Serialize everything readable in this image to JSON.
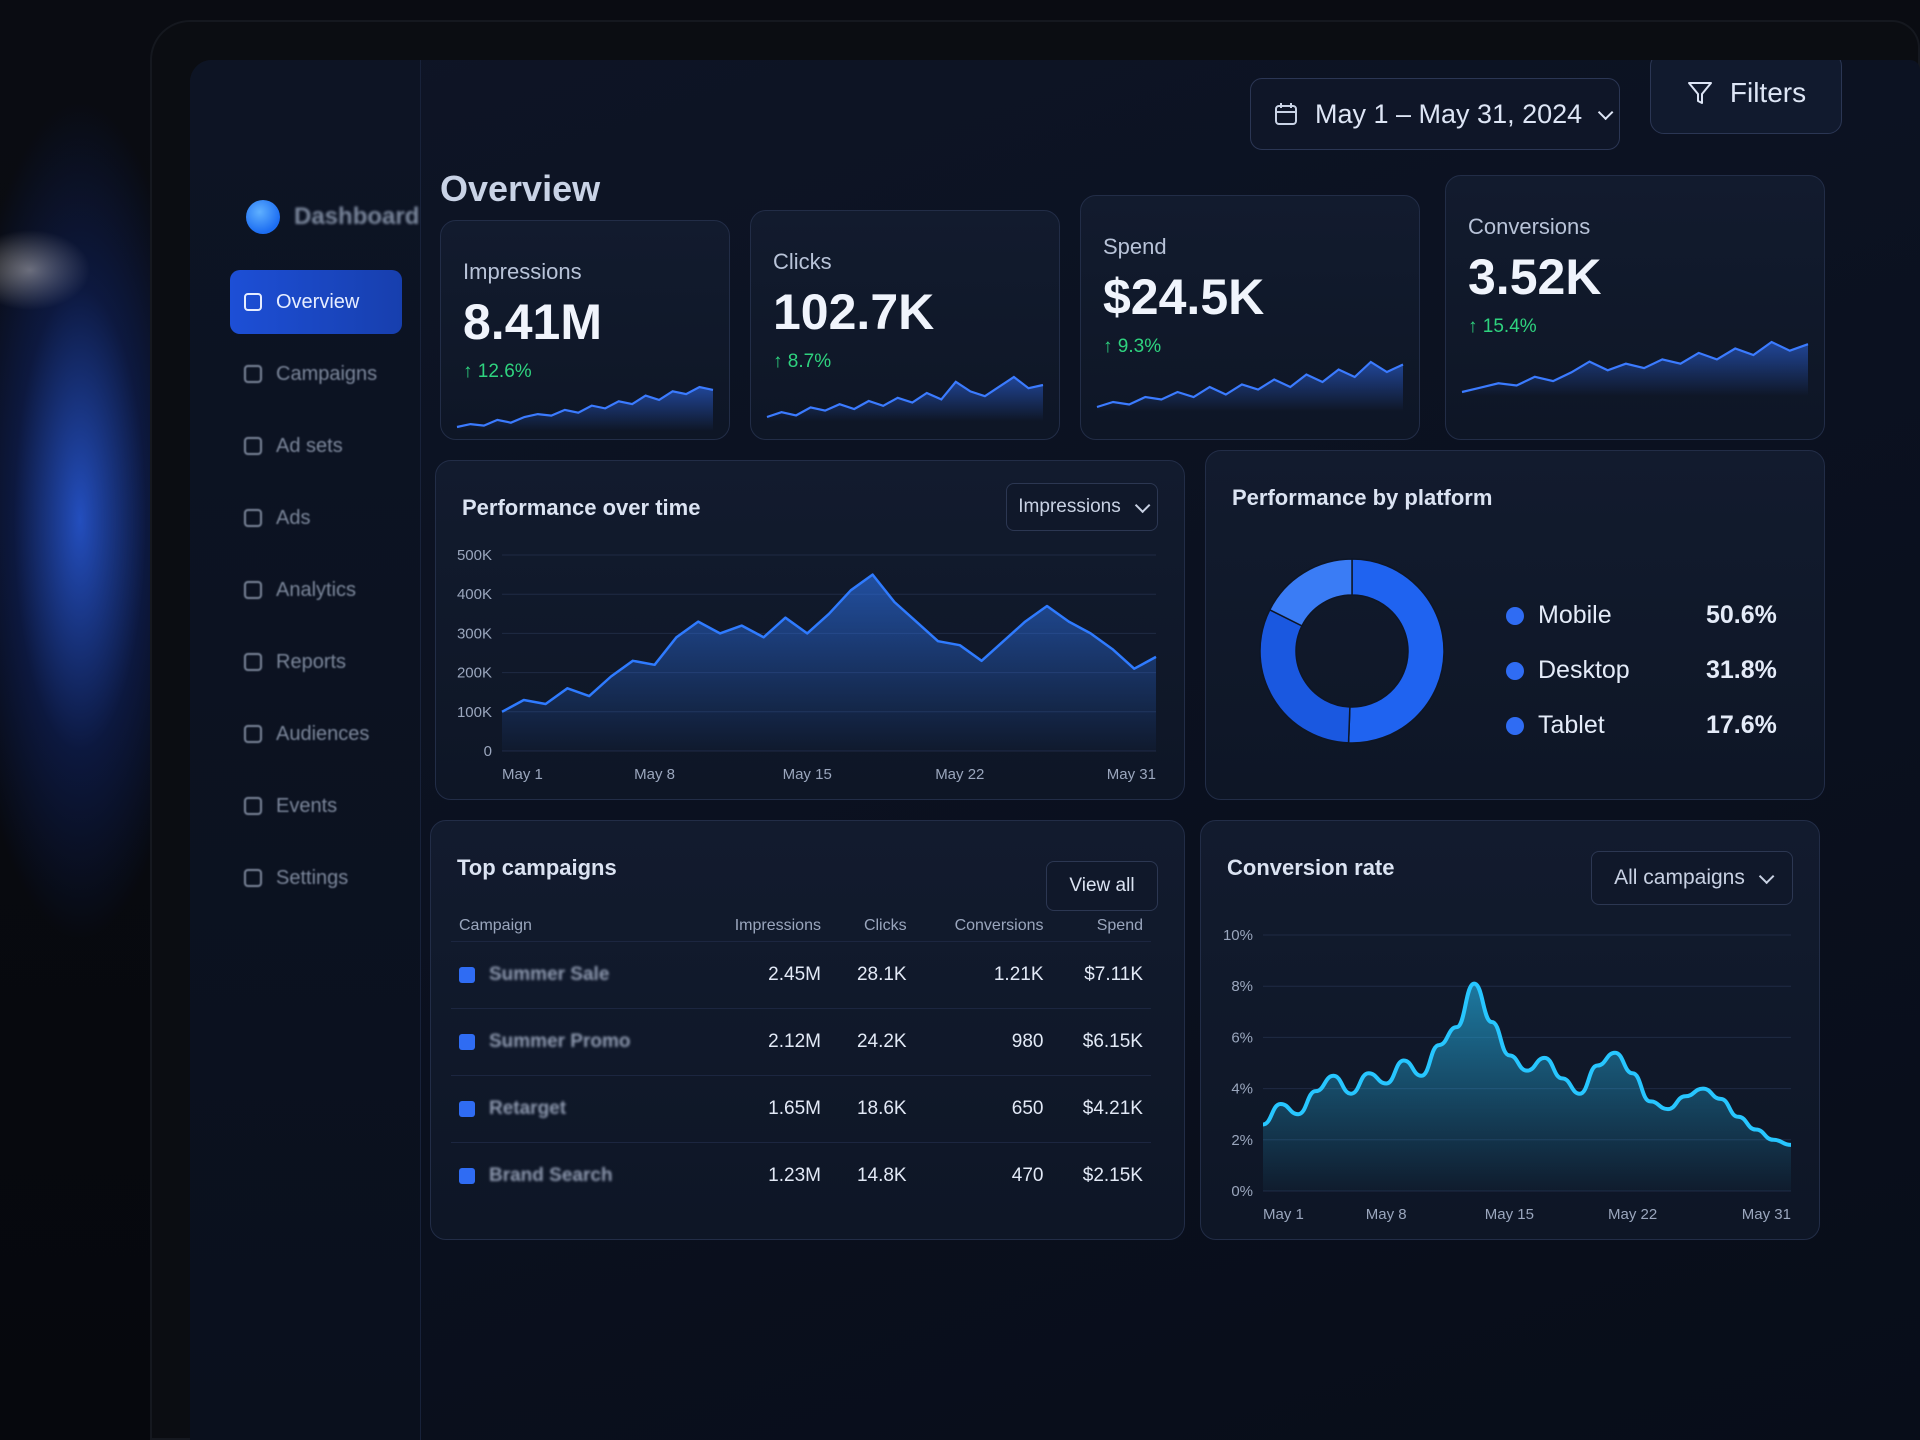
{
  "header": {
    "title": "Overview",
    "date_range": "May 1 – May 31, 2024",
    "filters_label": "Filters"
  },
  "sidebar": {
    "brand_name": "Dashboard",
    "items": [
      {
        "label": "Overview",
        "icon": "grid-icon",
        "active": true
      },
      {
        "label": "Campaigns",
        "icon": "megaphone-icon"
      },
      {
        "label": "Ad sets",
        "icon": "layers-icon"
      },
      {
        "label": "Ads",
        "icon": "ad-icon"
      },
      {
        "label": "Analytics",
        "icon": "bar-chart-icon"
      },
      {
        "label": "Reports",
        "icon": "document-icon"
      },
      {
        "label": "Audiences",
        "icon": "users-icon"
      },
      {
        "label": "Events",
        "icon": "calendar-icon"
      },
      {
        "label": "Settings",
        "icon": "gear-icon"
      }
    ]
  },
  "kpis": [
    {
      "label": "Impressions",
      "value": "8.41M",
      "delta": "↑ 12.6%",
      "spark": [
        22,
        24,
        23,
        27,
        25,
        29,
        31,
        30,
        34,
        32,
        37,
        35,
        40,
        38,
        44,
        41,
        47,
        45,
        50,
        48
      ]
    },
    {
      "label": "Clicks",
      "value": "102.7K",
      "delta": "↑ 8.7%",
      "spark": [
        20,
        23,
        21,
        26,
        24,
        28,
        25,
        30,
        27,
        32,
        29,
        35,
        31,
        42,
        36,
        33,
        39,
        45,
        38,
        40
      ]
    },
    {
      "label": "Spend",
      "value": "$24.5K",
      "delta": "↑ 9.3%",
      "spark": [
        20,
        22,
        21,
        24,
        23,
        26,
        24,
        28,
        25,
        29,
        27,
        31,
        28,
        33,
        30,
        35,
        32,
        38,
        34,
        37
      ]
    },
    {
      "label": "Conversions",
      "value": "3.52K",
      "delta": "↑ 15.4%",
      "spark": [
        20,
        22,
        24,
        23,
        27,
        25,
        29,
        34,
        30,
        33,
        31,
        35,
        33,
        38,
        35,
        40,
        37,
        43,
        39,
        42
      ]
    }
  ],
  "performance": {
    "title": "Performance over time",
    "metric": "Impressions"
  },
  "platform": {
    "title": "Performance by platform",
    "items": [
      {
        "label": "Mobile",
        "pct": "50.6%"
      },
      {
        "label": "Desktop",
        "pct": "31.8%"
      },
      {
        "label": "Tablet",
        "pct": "17.6%"
      }
    ]
  },
  "campaigns": {
    "title": "Top campaigns",
    "view_all": "View all",
    "headers": [
      "Campaign",
      "Impressions",
      "Clicks",
      "Conversions",
      "Spend"
    ],
    "rows": [
      [
        "Summer Sale",
        "2.45M",
        "28.1K",
        "1.21K",
        "$7.11K"
      ],
      [
        "Summer Promo",
        "2.12M",
        "24.2K",
        "980",
        "$6.15K"
      ],
      [
        "Retarget",
        "1.65M",
        "18.6K",
        "650",
        "$4.21K"
      ],
      [
        "Brand Search",
        "1.23M",
        "14.8K",
        "470",
        "$2.15K"
      ]
    ]
  },
  "conversion": {
    "title": "Conversion rate",
    "scope": "All campaigns"
  },
  "chart_data": [
    {
      "type": "area",
      "title": "Performance over time",
      "x_ticks": [
        "May 1",
        "May 8",
        "May 15",
        "May 22",
        "May 31"
      ],
      "y_ticks": [
        "0",
        "100K",
        "200K",
        "300K",
        "400K",
        "500K"
      ],
      "ylim": [
        0,
        500000
      ],
      "x": [
        1,
        2,
        3,
        4,
        5,
        6,
        7,
        8,
        9,
        10,
        11,
        12,
        13,
        14,
        15,
        16,
        17,
        18,
        19,
        20,
        21,
        22,
        23,
        24,
        25,
        26,
        27,
        28,
        29,
        30,
        31
      ],
      "series": [
        {
          "values": [
            100000,
            130000,
            120000,
            160000,
            140000,
            190000,
            230000,
            220000,
            290000,
            330000,
            300000,
            320000,
            290000,
            340000,
            300000,
            350000,
            410000,
            450000,
            380000,
            330000,
            280000,
            270000,
            230000,
            280000,
            330000,
            370000,
            330000,
            300000,
            260000,
            210000,
            240000
          ]
        }
      ]
    },
    {
      "type": "pie",
      "title": "Performance by platform",
      "labels": [
        "Mobile",
        "Desktop",
        "Tablet"
      ],
      "values": [
        50.6,
        31.8,
        17.6
      ]
    },
    {
      "type": "line",
      "title": "Conversion rate",
      "x_ticks": [
        "May 1",
        "May 8",
        "May 15",
        "May 22",
        "May 31"
      ],
      "y_ticks": [
        "0%",
        "2%",
        "4%",
        "6%",
        "8%",
        "10%"
      ],
      "ylim": [
        0,
        10
      ],
      "x": [
        1,
        2,
        3,
        4,
        5,
        6,
        7,
        8,
        9,
        10,
        11,
        12,
        13,
        14,
        15,
        16,
        17,
        18,
        19,
        20,
        21,
        22,
        23,
        24,
        25,
        26,
        27,
        28,
        29,
        30,
        31
      ],
      "series": [
        {
          "values": [
            2.6,
            3.4,
            3.0,
            3.9,
            4.5,
            3.8,
            4.6,
            4.2,
            5.1,
            4.5,
            5.7,
            6.4,
            8.1,
            6.6,
            5.3,
            4.7,
            5.2,
            4.4,
            3.8,
            4.9,
            5.4,
            4.6,
            3.5,
            3.2,
            3.7,
            4.0,
            3.6,
            2.9,
            2.4,
            2.0,
            1.8
          ]
        }
      ]
    }
  ]
}
